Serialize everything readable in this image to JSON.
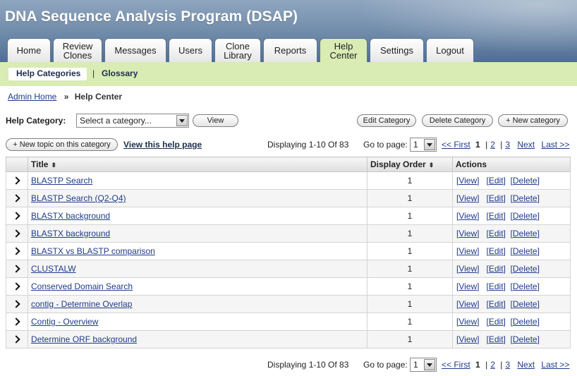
{
  "app": {
    "title": "DNA Sequence Analysis Program (DSAP)"
  },
  "tabs": [
    {
      "label": "Home",
      "active": false
    },
    {
      "label": "Review\nClones",
      "active": false
    },
    {
      "label": "Messages",
      "active": false
    },
    {
      "label": "Users",
      "active": false
    },
    {
      "label": "Clone\nLibrary",
      "active": false
    },
    {
      "label": "Reports",
      "active": false
    },
    {
      "label": "Help\nCenter",
      "active": true
    },
    {
      "label": "Settings",
      "active": false
    },
    {
      "label": "Logout",
      "active": false
    }
  ],
  "subnav": {
    "categories": "Help Categories",
    "separator": "|",
    "glossary": "Glossary"
  },
  "breadcrumb": {
    "home": "Admin Home",
    "arrow": "»",
    "current": "Help Center"
  },
  "category": {
    "label": "Help Category:",
    "select_value": "Select a category...",
    "view_button": "View",
    "edit_button": "Edit Category",
    "delete_button": "Delete Category",
    "new_button": "+ New category"
  },
  "topic": {
    "new_button": "+ New topic on this category",
    "view_link": "View this help page"
  },
  "pager": {
    "displaying": "Displaying 1-10 Of 83",
    "goto_label": "Go to page:",
    "page_value": "1",
    "first": "<< First",
    "pages": [
      "1",
      "2",
      "3"
    ],
    "sep": "|",
    "next": "Next",
    "last": "Last >>"
  },
  "table": {
    "headers": {
      "title": "Title",
      "order": "Display Order",
      "actions": "Actions"
    },
    "sort_icon": "⬍",
    "actions": {
      "view": "View",
      "edit": "Edit",
      "delete": "Delete",
      "open": "[",
      "close": "]"
    },
    "rows": [
      {
        "title": "BLASTP Search",
        "order": "1"
      },
      {
        "title": "BLASTP Search (Q2-Q4)",
        "order": "1"
      },
      {
        "title": "BLASTX background",
        "order": "1"
      },
      {
        "title": "BLASTX background",
        "order": "1"
      },
      {
        "title": "BLASTX vs BLASTP comparison",
        "order": "1"
      },
      {
        "title": "CLUSTALW",
        "order": "1"
      },
      {
        "title": "Conserved Domain Search",
        "order": "1"
      },
      {
        "title": "contig - Determine Overlap",
        "order": "1"
      },
      {
        "title": "Contig - Overview",
        "order": "1"
      },
      {
        "title": "Determine ORF background",
        "order": "1"
      }
    ]
  },
  "colors": {
    "header": "#6f8aa9",
    "subnav": "#d8ecb4",
    "link": "#1f3b8a"
  }
}
